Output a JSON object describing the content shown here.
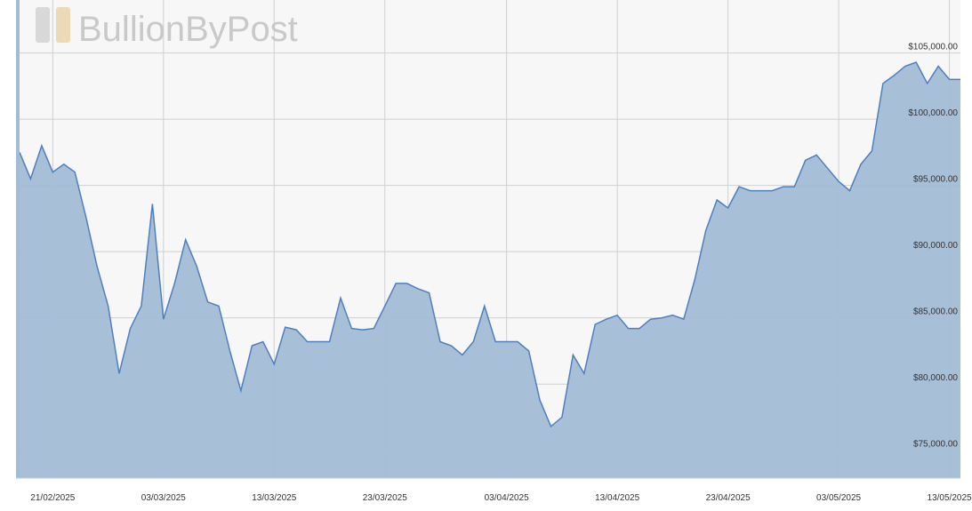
{
  "chart_data": {
    "type": "area",
    "watermark": "BullionByPost",
    "x": [
      "18/02/2025",
      "19/02/2025",
      "20/02/2025",
      "21/02/2025",
      "22/02/2025",
      "23/02/2025",
      "24/02/2025",
      "25/02/2025",
      "26/02/2025",
      "27/02/2025",
      "28/02/2025",
      "01/03/2025",
      "02/03/2025",
      "03/03/2025",
      "04/03/2025",
      "05/03/2025",
      "06/03/2025",
      "07/03/2025",
      "08/03/2025",
      "09/03/2025",
      "10/03/2025",
      "11/03/2025",
      "12/03/2025",
      "13/03/2025",
      "14/03/2025",
      "15/03/2025",
      "16/03/2025",
      "17/03/2025",
      "18/03/2025",
      "19/03/2025",
      "20/03/2025",
      "21/03/2025",
      "22/03/2025",
      "23/03/2025",
      "24/03/2025",
      "25/03/2025",
      "26/03/2025",
      "27/03/2025",
      "28/03/2025",
      "29/03/2025",
      "30/03/2025",
      "31/03/2025",
      "01/04/2025",
      "02/04/2025",
      "03/04/2025",
      "04/04/2025",
      "05/04/2025",
      "06/04/2025",
      "07/04/2025",
      "08/04/2025",
      "09/04/2025",
      "10/04/2025",
      "11/04/2025",
      "12/04/2025",
      "13/04/2025",
      "14/04/2025",
      "15/04/2025",
      "16/04/2025",
      "17/04/2025",
      "18/04/2025",
      "19/04/2025",
      "20/04/2025",
      "21/04/2025",
      "22/04/2025",
      "23/04/2025",
      "24/04/2025",
      "25/04/2025",
      "26/04/2025",
      "27/04/2025",
      "28/04/2025",
      "29/04/2025",
      "30/04/2025",
      "01/05/2025",
      "02/05/2025",
      "03/05/2025",
      "04/05/2025",
      "05/05/2025",
      "06/05/2025",
      "07/05/2025",
      "08/05/2025",
      "09/05/2025",
      "10/05/2025",
      "11/05/2025",
      "12/05/2025",
      "13/05/2025",
      "14/05/2025"
    ],
    "values": [
      97500,
      95500,
      98000,
      96000,
      96600,
      96000,
      92600,
      88900,
      85900,
      80800,
      84200,
      85900,
      93600,
      84900,
      87600,
      90900,
      88900,
      86200,
      85900,
      82500,
      79500,
      82900,
      83200,
      81500,
      84300,
      84100,
      83200,
      83200,
      83200,
      86500,
      84200,
      84100,
      84200,
      85900,
      87600,
      87600,
      87200,
      86900,
      83200,
      82900,
      82200,
      83200,
      85900,
      83200,
      83200,
      83200,
      82500,
      78800,
      76800,
      77500,
      82200,
      80800,
      84500,
      84900,
      85200,
      84200,
      84200,
      84900,
      85000,
      85200,
      84900,
      87900,
      91600,
      93900,
      93300,
      94900,
      94600,
      94600,
      94600,
      94900,
      94900,
      96900,
      97300,
      96300,
      95300,
      94600,
      96600,
      97600,
      102700,
      103300,
      104000,
      104300,
      102700,
      104000,
      103000,
      103000
    ],
    "color": "#4f7fbf",
    "fill": "#a3bcd6",
    "xlim": [
      "18/02/2025",
      "14/05/2025"
    ],
    "xticks": [
      "21/02/2025",
      "03/03/2025",
      "13/03/2025",
      "23/03/2025",
      "03/04/2025",
      "13/04/2025",
      "23/04/2025",
      "03/05/2025",
      "13/05/2025"
    ],
    "ylim": [
      72900,
      109000
    ],
    "yticks": [
      {
        "value": 75000,
        "label": "$75,000.00"
      },
      {
        "value": 80000,
        "label": "$80,000.00"
      },
      {
        "value": 85000,
        "label": "$85,000.00"
      },
      {
        "value": 90000,
        "label": "$90,000.00"
      },
      {
        "value": 95000,
        "label": "$95,000.00"
      },
      {
        "value": 100000,
        "label": "$100,000.00"
      },
      {
        "value": 105000,
        "label": "$105,000.00"
      }
    ],
    "grid": true
  }
}
